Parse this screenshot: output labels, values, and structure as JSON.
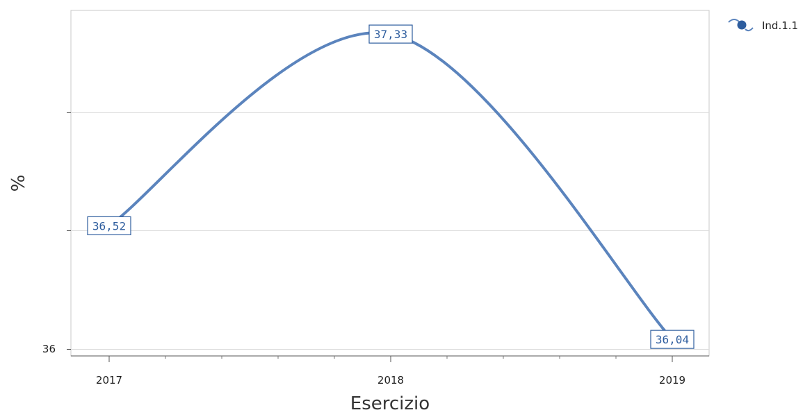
{
  "chart_data": {
    "type": "line",
    "categories": [
      "2017",
      "2018",
      "2019"
    ],
    "series": [
      {
        "name": "Ind.1.1",
        "values": [
          36.52,
          37.33,
          36.04
        ],
        "color": "#5b84bd"
      }
    ],
    "data_labels": [
      "36,52",
      "37,33",
      "36,04"
    ],
    "xlabel": "Esercizio",
    "ylabel": "%",
    "yticks": [
      {
        "value": 36,
        "label": "36"
      }
    ],
    "ygrid": [
      36,
      36.5,
      37
    ],
    "ylim": [
      35.97,
      37.43
    ],
    "grid": true,
    "legend_position": "top-right",
    "curve": "smooth"
  }
}
